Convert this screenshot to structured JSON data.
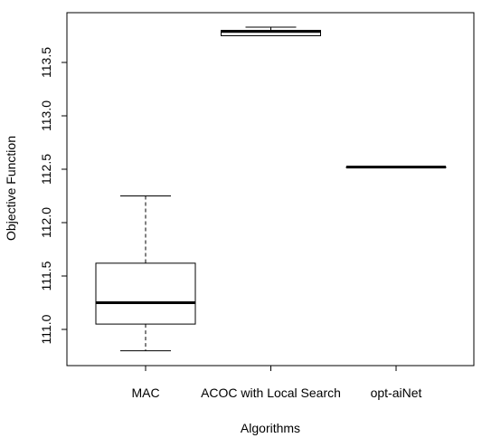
{
  "chart_data": {
    "type": "boxplot",
    "title": "",
    "xlabel": "Algorithms",
    "ylabel": "Objective Function",
    "ylim": [
      110.7,
      113.95
    ],
    "yticks": [
      111.0,
      111.5,
      112.0,
      112.5,
      113.0,
      113.5
    ],
    "ytick_labels": [
      "111.0",
      "111.5",
      "112.0",
      "112.5",
      "113.0",
      "113.5"
    ],
    "categories": [
      "MAC",
      "ACOC with Local Search",
      "opt-aiNet"
    ],
    "boxes": [
      {
        "name": "MAC",
        "whisker_low": 110.8,
        "q1": 111.05,
        "median": 111.25,
        "q3": 111.62,
        "whisker_high": 112.25
      },
      {
        "name": "ACOC with Local Search",
        "whisker_low": 113.75,
        "q1": 113.75,
        "median": 113.79,
        "q3": 113.8,
        "whisker_high": 113.83
      },
      {
        "name": "opt-aiNet",
        "whisker_low": 112.52,
        "q1": 112.52,
        "median": 112.52,
        "q3": 112.52,
        "whisker_high": 112.52
      }
    ],
    "grid": false,
    "colors": {
      "box_fill": "#ffffff",
      "stroke": "#000000"
    }
  }
}
